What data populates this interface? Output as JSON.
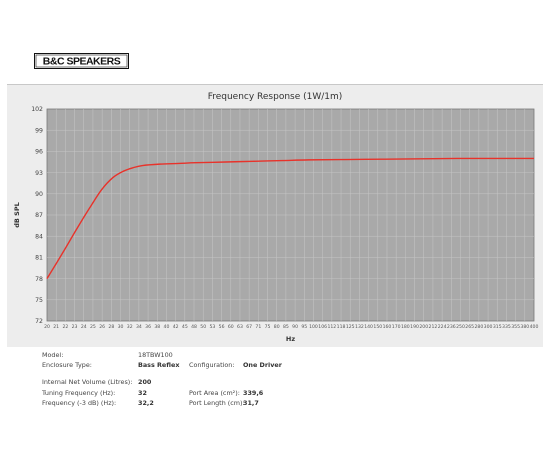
{
  "logo": {
    "text": "B&C SPEAKERS"
  },
  "chart_data": {
    "type": "line",
    "title": "Frequency Response (1W/1m)",
    "xlabel": "Hz",
    "ylabel": "dB SPL",
    "yticks": [
      72,
      75,
      78,
      81,
      84,
      87,
      90,
      93,
      96,
      99,
      102
    ],
    "ylim": [
      72,
      102
    ],
    "xticks": [
      20,
      21,
      22,
      23,
      24,
      25,
      26,
      28,
      30,
      32,
      34,
      36,
      38,
      40,
      42,
      45,
      48,
      50,
      53,
      56,
      60,
      63,
      67,
      71,
      75,
      80,
      85,
      90,
      95,
      100,
      106,
      112,
      118,
      125,
      132,
      140,
      150,
      160,
      170,
      180,
      190,
      200,
      212,
      224,
      236,
      250,
      265,
      280,
      300,
      315,
      335,
      355,
      380,
      400
    ],
    "xlim": [
      20,
      400
    ],
    "grid": true,
    "series": [
      {
        "color": "#e8322a",
        "x": [
          20,
          22,
          24,
          26,
          28,
          30,
          32,
          34,
          36,
          40,
          45,
          50,
          60,
          71,
          85,
          100,
          125,
          160,
          200,
          250,
          300,
          400
        ],
        "y": [
          78.0,
          81.6,
          85.0,
          88.0,
          90.6,
          92.3,
          93.2,
          93.7,
          94.0,
          94.2,
          94.3,
          94.4,
          94.5,
          94.6,
          94.7,
          94.8,
          94.85,
          94.9,
          94.95,
          95.0,
          95.0,
          95.0
        ]
      }
    ]
  },
  "specs": {
    "model_label": "Model:",
    "model_value": "18TBW100",
    "enclosure_label": "Enclosure Type:",
    "enclosure_value": "Bass Reflex",
    "config_label": "Configuration:",
    "config_value": "One Driver",
    "volume_label": "Internal Net Volume (Litres):",
    "volume_value": "200",
    "tuning_label": "Tuning Frequency (Hz):",
    "tuning_value": "32",
    "port_area_label": "Port Area (cm²):",
    "port_area_value": "339,6",
    "f3_label": "Frequency (-3 dB) (Hz):",
    "f3_value": "32,2",
    "port_length_label": "Port Length (cm):",
    "port_length_value": "31,7"
  }
}
